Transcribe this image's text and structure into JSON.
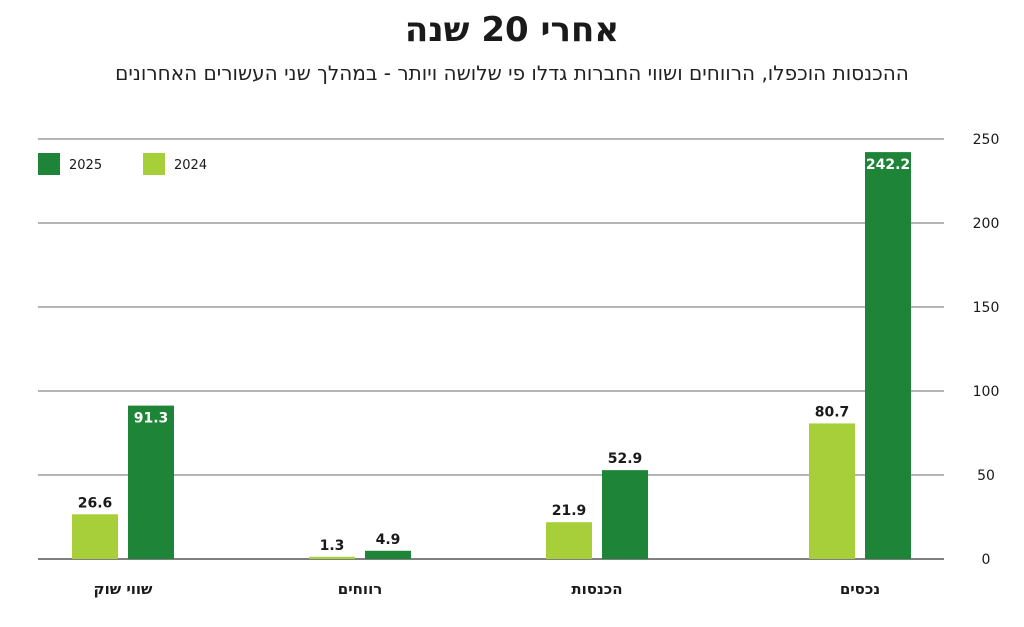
{
  "chart_data": {
    "type": "bar",
    "title": "אחרי 20 שנה",
    "subtitle": "ההכנסות הוכפלו, הרווחים ושווי החברות גדלו פי שלושה ויותר - במהלך שני העשורים האחרונים",
    "categories": [
      "נכסים",
      "הכנסות",
      "רווחים",
      "שווי שוק"
    ],
    "series": [
      {
        "name": "2024",
        "color": "#a6cf3a",
        "values": [
          80.7,
          21.9,
          1.3,
          26.6
        ],
        "labels": [
          "80.7",
          "21.9",
          "1.3",
          "26.6"
        ]
      },
      {
        "name": "2025",
        "color": "#1e8438",
        "values": [
          242.2,
          52.9,
          4.9,
          91.3
        ],
        "labels": [
          "242.2",
          "52.9",
          "4.9",
          "91.3"
        ]
      }
    ],
    "ylim": [
      0,
      250
    ],
    "yticks": [
      "0",
      "50",
      "100",
      "150",
      "200",
      "250"
    ],
    "ytick_values": [
      0,
      50,
      100,
      150,
      200,
      250
    ],
    "grid": true,
    "legend_position": "top-left",
    "y_axis_side": "right",
    "category_order": "right-to-left"
  }
}
